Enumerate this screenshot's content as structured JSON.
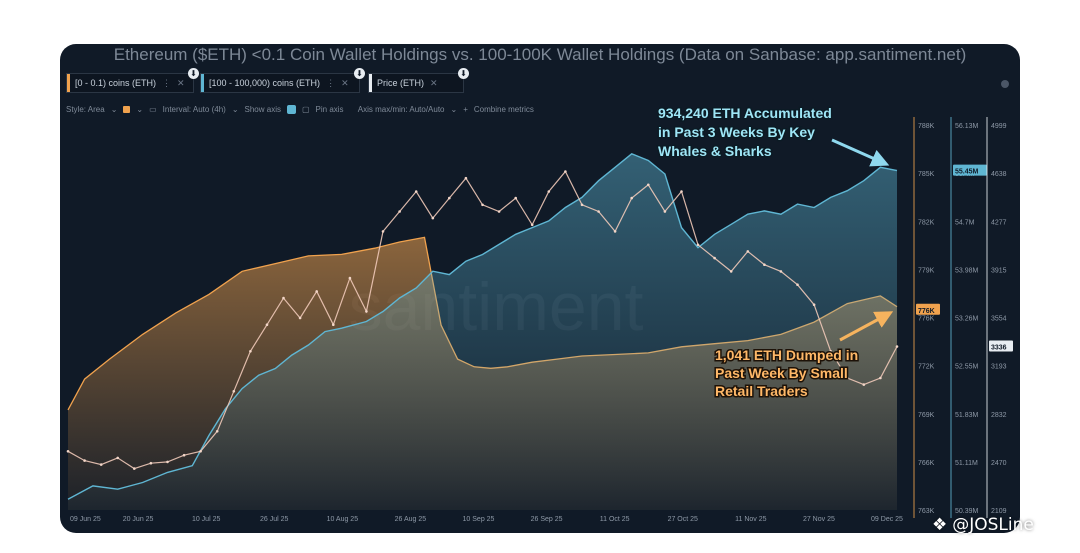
{
  "chart_data": {
    "type": "area",
    "title": "Ethereum ($ETH) <0.1 Coin Wallet Holdings vs. 100-100K Wallet Holdings (Data on Sanbase: app.santiment.net)",
    "x_ticks": [
      "09 Jun 25",
      "20 Jun 25",
      "10 Jul 25",
      "26 Jul 25",
      "10 Aug 25",
      "26 Aug 25",
      "10 Sep 25",
      "26 Sep 25",
      "11 Oct 25",
      "27 Oct 25",
      "11 Nov 25",
      "27 Nov 25",
      "09 Dec 25"
    ],
    "axes": {
      "small_wallets": {
        "ticks": [
          "788K",
          "785K",
          "782K",
          "779K",
          "776K",
          "772K",
          "769K",
          "766K",
          "763K"
        ],
        "current": "776K",
        "color": "#f0a24e"
      },
      "large_wallets": {
        "ticks": [
          "56.13M",
          "55.4M",
          "54.7M",
          "53.98M",
          "53.26M",
          "52.55M",
          "51.83M",
          "51.11M",
          "50.39M"
        ],
        "current": "55.45M",
        "color": "#5fb6d3"
      },
      "price": {
        "ticks": [
          "4999",
          "4638",
          "4277",
          "3915",
          "3554",
          "3193",
          "2832",
          "2470",
          "2109"
        ],
        "current": "3336",
        "color": "#e8edf2"
      }
    },
    "series": [
      {
        "name": "[0 - 0.1) coins (ETH)",
        "color": "#f0a24e",
        "x": [
          0,
          2,
          5,
          9,
          13,
          17,
          21,
          25,
          29,
          33,
          37,
          40,
          43,
          45,
          47,
          49,
          51,
          53,
          56,
          59,
          62,
          66,
          70,
          74,
          78,
          82,
          86,
          90,
          94,
          98,
          100
        ],
        "values": [
          769.5,
          771.5,
          772.8,
          774.4,
          775.8,
          777.0,
          778.5,
          779.0,
          779.5,
          779.6,
          780.0,
          780.4,
          780.7,
          775.0,
          772.8,
          772.3,
          772.2,
          772.3,
          772.6,
          772.8,
          773.0,
          773.1,
          773.2,
          773.6,
          773.8,
          774.0,
          774.4,
          775.2,
          776.4,
          776.9,
          776.2
        ]
      },
      {
        "name": "[100 - 100,000) coins (ETH)",
        "color": "#5fb6d3",
        "x": [
          0,
          3,
          6,
          9,
          12,
          15,
          17,
          19,
          21,
          23,
          25,
          27,
          29,
          31,
          33,
          36,
          38,
          40,
          42,
          44,
          46,
          48,
          50,
          52,
          54,
          56,
          58,
          60,
          62,
          64,
          66,
          68,
          70,
          72,
          74,
          76,
          78,
          80,
          82,
          84,
          86,
          88,
          90,
          92,
          94,
          96,
          98,
          100
        ],
        "values": [
          50.55,
          50.75,
          50.7,
          50.8,
          50.95,
          51.05,
          51.5,
          51.9,
          52.2,
          52.4,
          52.5,
          52.7,
          52.85,
          53.05,
          53.1,
          53.2,
          53.35,
          53.55,
          53.7,
          53.95,
          53.9,
          54.1,
          54.2,
          54.35,
          54.5,
          54.6,
          54.7,
          54.9,
          55.05,
          55.3,
          55.5,
          55.7,
          55.6,
          55.4,
          54.6,
          54.3,
          54.5,
          54.65,
          54.8,
          54.85,
          54.8,
          54.95,
          54.9,
          55.05,
          55.15,
          55.3,
          55.5,
          55.45
        ]
      },
      {
        "name": "Price (ETH)",
        "color": "#e8edf2",
        "x": [
          0,
          2,
          4,
          6,
          8,
          10,
          12,
          14,
          16,
          18,
          20,
          22,
          24,
          26,
          28,
          30,
          32,
          34,
          36,
          38,
          40,
          42,
          44,
          46,
          48,
          50,
          52,
          54,
          56,
          58,
          60,
          62,
          64,
          66,
          68,
          70,
          72,
          74,
          76,
          78,
          80,
          82,
          84,
          86,
          88,
          90,
          92,
          94,
          96,
          98,
          100
        ],
        "values": [
          2550,
          2480,
          2450,
          2500,
          2420,
          2460,
          2470,
          2520,
          2550,
          2700,
          3000,
          3300,
          3500,
          3700,
          3550,
          3750,
          3500,
          3850,
          3600,
          4200,
          4350,
          4500,
          4300,
          4450,
          4600,
          4400,
          4350,
          4450,
          4250,
          4500,
          4650,
          4400,
          4350,
          4200,
          4450,
          4550,
          4350,
          4500,
          4100,
          4000,
          3900,
          4050,
          3950,
          3900,
          3800,
          3650,
          3300,
          3100,
          3050,
          3100,
          3336
        ]
      }
    ],
    "annotations": [
      {
        "text_lines": [
          "934,240 ETH Accumulated",
          "in Past 3 Weeks By Key",
          "Whales & Sharks"
        ],
        "color": "#9ee6f6"
      },
      {
        "text_lines": [
          "1,041 ETH Dumped in",
          "Past Week By Small",
          "Retail Traders"
        ],
        "color": "#ffb868"
      }
    ],
    "watermark": "santiment"
  },
  "tabs": [
    {
      "label": "[0 - 0.1) coins (ETH)",
      "color": "#f0a24e",
      "opt": "⋮",
      "close": "✕",
      "pin": "⬇"
    },
    {
      "label": "[100 - 100,000) coins (ETH)",
      "color": "#5fb6d3",
      "opt": "⋮",
      "close": "✕",
      "pin": "⬇"
    },
    {
      "label": "Price (ETH)",
      "color": "#e8edf2",
      "opt": "",
      "close": "✕",
      "pin": "⬇"
    }
  ],
  "toolbar": {
    "style": "Style: Area",
    "interval": "Interval: Auto (4h)",
    "show_axis": "Show axis",
    "pin_axis": "Pin axis",
    "axis_maxmin": "Axis max/min: Auto/Auto",
    "combine": "Combine metrics",
    "chevron": "⌄",
    "plus": "+"
  },
  "credit": {
    "text": "@JOSLine",
    "icon": "❖"
  }
}
